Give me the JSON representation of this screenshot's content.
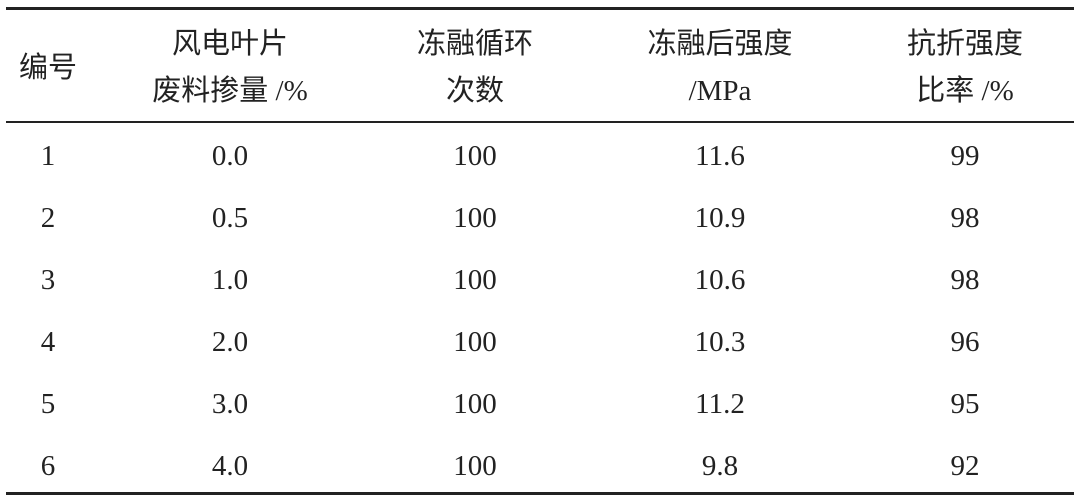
{
  "table": {
    "header": [
      [
        "编号"
      ],
      [
        "风电叶片",
        "废料掺量 /%"
      ],
      [
        "冻融循环",
        "次数"
      ],
      [
        "冻融后强度",
        "/MPa"
      ],
      [
        "抗折强度",
        "比率 /%"
      ]
    ],
    "rows": [
      [
        "1",
        "0.0",
        "100",
        "11.6",
        "99"
      ],
      [
        "2",
        "0.5",
        "100",
        "10.9",
        "98"
      ],
      [
        "3",
        "1.0",
        "100",
        "10.6",
        "98"
      ],
      [
        "4",
        "2.0",
        "100",
        "10.3",
        "96"
      ],
      [
        "5",
        "3.0",
        "100",
        "11.2",
        "95"
      ],
      [
        "6",
        "4.0",
        "100",
        "9.8",
        "92"
      ]
    ]
  }
}
